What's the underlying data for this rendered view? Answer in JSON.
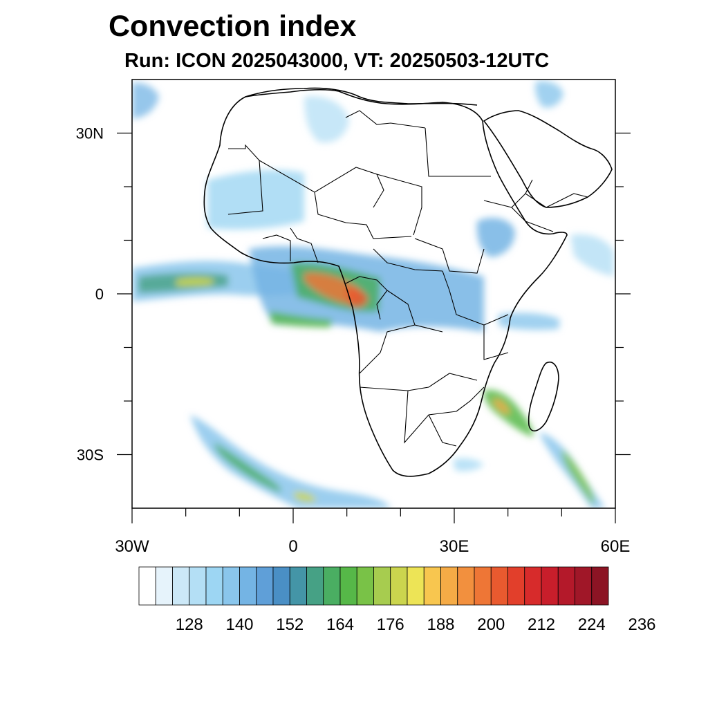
{
  "title": "Convection index",
  "subtitle": "Run: ICON 2025043000,  VT: 20250503-12UTC",
  "map": {
    "lon_range": [
      -30,
      60
    ],
    "lat_range": [
      -40,
      40
    ],
    "lat_ticks": [
      {
        "lat": 30,
        "label": "30N"
      },
      {
        "lat": 0,
        "label": "0"
      },
      {
        "lat": -30,
        "label": "30S"
      }
    ],
    "lon_ticks": [
      {
        "lon": -30,
        "label": "30W"
      },
      {
        "lon": 0,
        "label": "0"
      },
      {
        "lon": 30,
        "label": "30E"
      },
      {
        "lon": 60,
        "label": "60E"
      }
    ]
  },
  "colorbar": {
    "colors": [
      "#ffffff",
      "#e6f3fb",
      "#cce8f7",
      "#b4dff5",
      "#9dd6f3",
      "#8ac6ec",
      "#74b4e4",
      "#5f9fd8",
      "#4a8fc5",
      "#4495a7",
      "#46a185",
      "#4aae62",
      "#56b848",
      "#79c247",
      "#a7cc4f",
      "#cbd54e",
      "#ede456",
      "#f8c64f",
      "#f5ab46",
      "#f2903e",
      "#ee7636",
      "#e95a2f",
      "#e23f2b",
      "#d72b2b",
      "#c81e2b",
      "#b4192a",
      "#a01728",
      "#8c1424"
    ],
    "tick_labels": [
      "128",
      "140",
      "152",
      "164",
      "176",
      "188",
      "200",
      "212",
      "224",
      "236"
    ]
  }
}
